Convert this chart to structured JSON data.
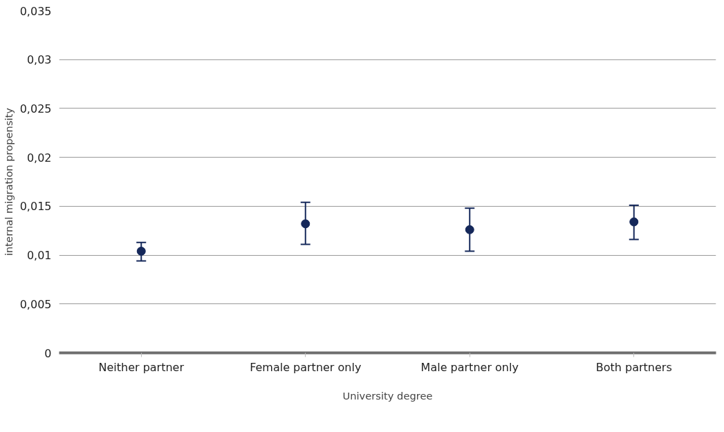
{
  "chart_data": {
    "type": "scatter",
    "xlabel": "University degree",
    "ylabel": "internal migration propensity",
    "categories": [
      "Neither partner",
      "Female partner only",
      "Male partner only",
      "Both partners"
    ],
    "series": [
      {
        "color": "#15285a",
        "values": [
          0.0104,
          0.0132,
          0.0126,
          0.0134
        ],
        "errors": [
          [
            0.0094,
            0.0113
          ],
          [
            0.0111,
            0.0154
          ],
          [
            0.0104,
            0.0148
          ],
          [
            0.0116,
            0.0151
          ]
        ]
      }
    ],
    "marker": "circle",
    "grid": "y",
    "ylim": [
      0,
      0.035
    ],
    "yticks": [
      {
        "value": 0,
        "label": "0"
      },
      {
        "value": 0.005,
        "label": "0,005"
      },
      {
        "value": 0.01,
        "label": "0,01"
      },
      {
        "value": 0.015,
        "label": "0,015"
      },
      {
        "value": 0.02,
        "label": "0,02"
      },
      {
        "value": 0.025,
        "label": "0,025"
      },
      {
        "value": 0.03,
        "label": "0,03"
      },
      {
        "value": 0.035,
        "label": "0,035"
      }
    ]
  }
}
